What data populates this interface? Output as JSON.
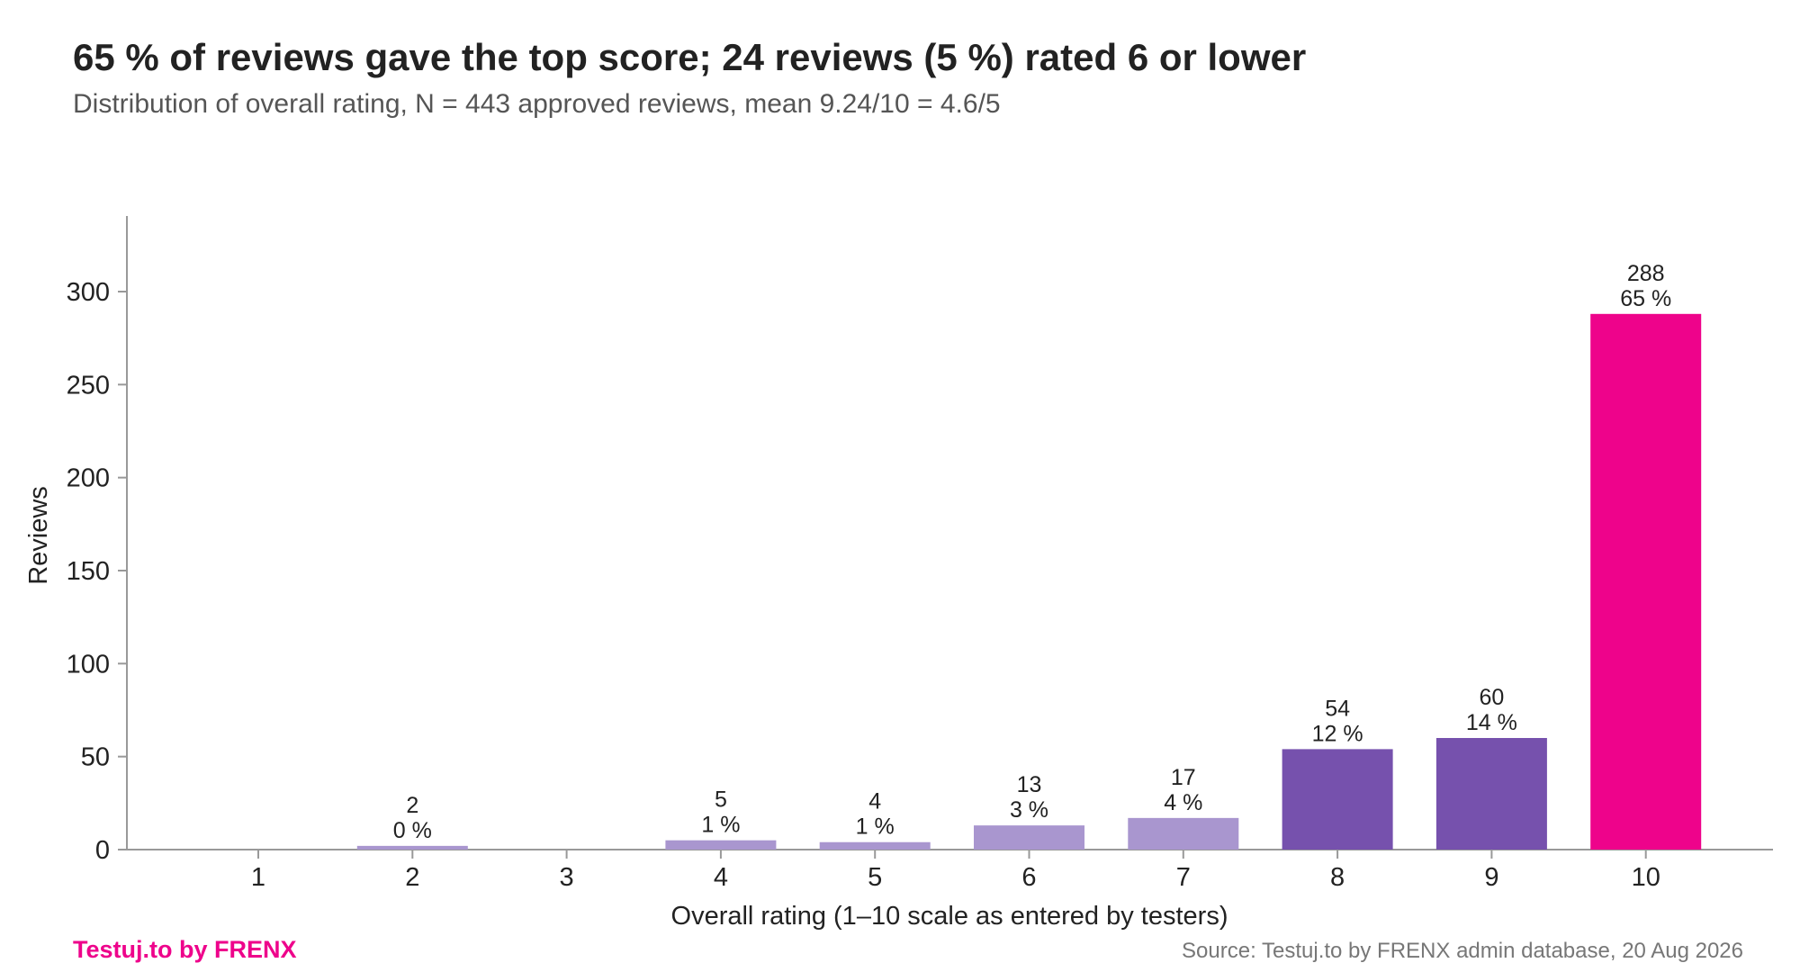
{
  "title": "65 % of reviews gave the top score; 24 reviews (5 %) rated 6 or lower",
  "subtitle": "Distribution of overall rating, N = 443 approved reviews, mean 9.24/10 = 4.6/5",
  "brand": "Testuj.to by FRENX",
  "source": "Source: Testuj.to by FRENX admin database, 20 Aug 2026",
  "colors": {
    "low": "#a996cf",
    "mid": "#7651ad",
    "top": "#ee038b",
    "brand": "#ee038b",
    "axis": "#999999"
  },
  "chart_data": {
    "type": "bar",
    "xlabel": "Overall rating (1–10 scale as entered by testers)",
    "ylabel": "Reviews",
    "categories": [
      "1",
      "2",
      "3",
      "4",
      "5",
      "6",
      "7",
      "8",
      "9",
      "10"
    ],
    "values": [
      0,
      2,
      0,
      5,
      4,
      13,
      17,
      54,
      60,
      288
    ],
    "percent_labels": [
      "",
      "0 %",
      "",
      "1 %",
      "1 %",
      "3 %",
      "4 %",
      "12 %",
      "14 %",
      "65 %"
    ],
    "bar_colors": [
      "#a996cf",
      "#a996cf",
      "#a996cf",
      "#a996cf",
      "#a996cf",
      "#a996cf",
      "#a996cf",
      "#7651ad",
      "#7651ad",
      "#ee038b"
    ],
    "yticks": [
      0,
      50,
      100,
      150,
      200,
      250,
      300
    ],
    "ylim": [
      0,
      340
    ],
    "grid": false,
    "legend": "none"
  }
}
